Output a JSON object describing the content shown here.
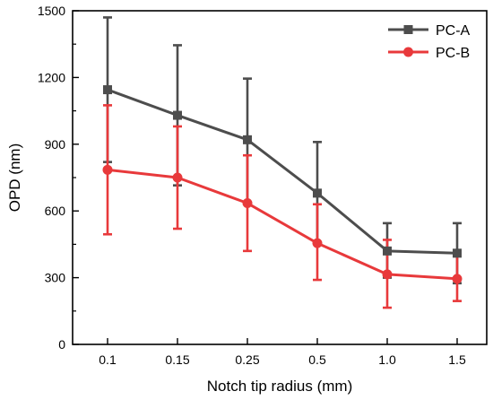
{
  "chart_data": {
    "type": "line",
    "title": "",
    "xlabel": "Notch tip radius (mm)",
    "ylabel": "OPD (nm)",
    "categories": [
      "0.1",
      "0.15",
      "0.25",
      "0.5",
      "1.0",
      "1.5"
    ],
    "ylim": [
      0,
      1500
    ],
    "yticks": [
      0,
      300,
      600,
      900,
      1200,
      1500
    ],
    "grid": false,
    "legend_position": "top-right",
    "series": [
      {
        "name": "PC-A",
        "color": "#4d4d4d",
        "marker": "square",
        "values": [
          1145,
          1030,
          920,
          680,
          420,
          410
        ],
        "error_low": [
          820,
          715,
          640,
          455,
          300,
          275
        ],
        "error_high": [
          1470,
          1345,
          1195,
          910,
          545,
          545
        ]
      },
      {
        "name": "PC-B",
        "color": "#e8393b",
        "marker": "circle",
        "values": [
          785,
          750,
          635,
          455,
          315,
          295
        ],
        "error_low": [
          495,
          520,
          420,
          290,
          165,
          195
        ],
        "error_high": [
          1075,
          980,
          850,
          630,
          470,
          400
        ]
      }
    ]
  }
}
